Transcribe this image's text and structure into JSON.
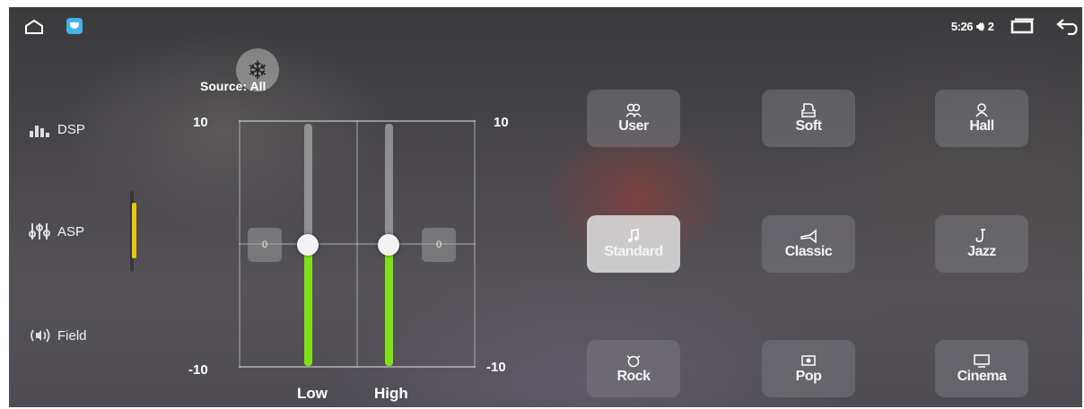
{
  "status_bar": {
    "time": "5:26",
    "volume_icon": "volume-icon",
    "volume_level": "2"
  },
  "sidebar": {
    "items": [
      {
        "label": "DSP",
        "icon": "equalizer-bars-icon"
      },
      {
        "label": "ASP",
        "icon": "sliders-icon"
      },
      {
        "label": "Field",
        "icon": "speaker-waves-icon"
      }
    ],
    "active_index": 1
  },
  "eq": {
    "source_label": "Source: All",
    "fan_icon": "snowflake-fan-icon",
    "y_max": "10",
    "y_min": "-10",
    "y_max_right": "10",
    "y_min_right": "-10",
    "bands": [
      {
        "label": "Low",
        "value": 0,
        "value_text": "0"
      },
      {
        "label": "High",
        "value": 0,
        "value_text": "0"
      }
    ],
    "range": [
      -10,
      10
    ],
    "accent": "#7fe01a"
  },
  "presets": [
    {
      "label": "User",
      "icon": "users-icon"
    },
    {
      "label": "Soft",
      "icon": "piano-icon"
    },
    {
      "label": "Hall",
      "icon": "hall-icon"
    },
    {
      "label": "Standard",
      "icon": "music-note-icon",
      "active": true
    },
    {
      "label": "Classic",
      "icon": "trumpet-icon"
    },
    {
      "label": "Jazz",
      "icon": "saxophone-icon"
    },
    {
      "label": "Rock",
      "icon": "rock-icon"
    },
    {
      "label": "Pop",
      "icon": "pop-icon"
    },
    {
      "label": "Cinema",
      "icon": "cinema-icon"
    }
  ]
}
